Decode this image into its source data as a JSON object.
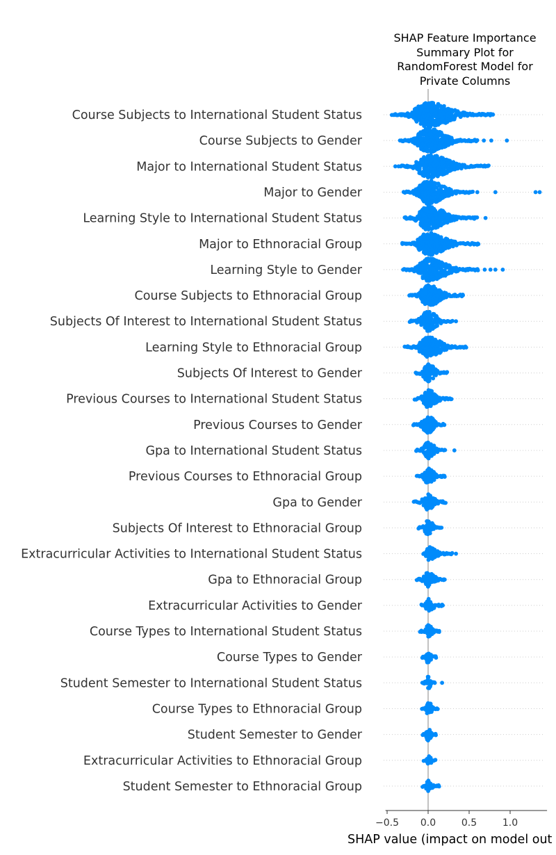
{
  "chart_data": {
    "type": "scatter",
    "subtype": "shap-beeswarm",
    "title_lines": [
      "SHAP Feature Importance",
      "Summary Plot for",
      "RandomForest Model for",
      "Private Columns"
    ],
    "xlabel": "SHAP value (impact on model out",
    "xlim": [
      -0.52,
      1.45
    ],
    "xticks": [
      -0.5,
      0.0,
      0.5,
      1.0
    ],
    "xtick_labels": [
      "−0.5",
      "0.0",
      "0.5",
      "1.0"
    ],
    "color": "#008bfb",
    "features": [
      {
        "name": "Course Subjects to International Student Status",
        "min": -0.44,
        "max": 0.79,
        "outliers": [
          0.68,
          0.72,
          0.79
        ],
        "spread": 1.0
      },
      {
        "name": "Course Subjects to Gender",
        "min": -0.34,
        "max": 0.6,
        "outliers": [
          0.68,
          0.77,
          0.96
        ],
        "spread": 1.0
      },
      {
        "name": "Major to International Student Status",
        "min": -0.33,
        "max": 0.74,
        "outliers": [
          -0.4,
          -0.36
        ],
        "spread": 0.95
      },
      {
        "name": "Major to Gender",
        "min": -0.3,
        "max": 0.55,
        "outliers": [
          0.6,
          0.82,
          1.31,
          1.36
        ],
        "spread": 0.95
      },
      {
        "name": "Learning Style to International Student Status",
        "min": -0.29,
        "max": 0.6,
        "outliers": [
          0.7
        ],
        "spread": 0.95
      },
      {
        "name": "Major to Ethnoracial Group",
        "min": -0.32,
        "max": 0.62,
        "outliers": [],
        "spread": 0.9
      },
      {
        "name": "Learning Style to Gender",
        "min": -0.3,
        "max": 0.62,
        "outliers": [
          0.69,
          0.76,
          0.82,
          0.91
        ],
        "spread": 0.9
      },
      {
        "name": "Course Subjects to Ethnoracial Group",
        "min": -0.23,
        "max": 0.43,
        "outliers": [],
        "spread": 0.85
      },
      {
        "name": "Subjects Of Interest to International Student Status",
        "min": -0.23,
        "max": 0.3,
        "outliers": [
          0.34
        ],
        "spread": 0.8
      },
      {
        "name": "Learning Style to Ethnoracial Group",
        "min": -0.28,
        "max": 0.47,
        "outliers": [],
        "spread": 0.8
      },
      {
        "name": "Subjects Of Interest to Gender",
        "min": -0.15,
        "max": 0.24,
        "outliers": [],
        "spread": 0.7
      },
      {
        "name": "Previous Courses to International Student Status",
        "min": -0.16,
        "max": 0.29,
        "outliers": [],
        "spread": 0.7
      },
      {
        "name": "Previous Courses to Gender",
        "min": -0.18,
        "max": 0.21,
        "outliers": [],
        "spread": 0.7
      },
      {
        "name": "Gpa to International Student Status",
        "min": -0.15,
        "max": 0.22,
        "outliers": [
          0.32
        ],
        "spread": 0.65
      },
      {
        "name": "Previous Courses to Ethnoracial Group",
        "min": -0.14,
        "max": 0.21,
        "outliers": [],
        "spread": 0.65
      },
      {
        "name": "Gpa to Gender",
        "min": -0.17,
        "max": 0.22,
        "outliers": [],
        "spread": 0.65
      },
      {
        "name": "Subjects Of Interest to Ethnoracial Group",
        "min": -0.12,
        "max": 0.17,
        "outliers": [],
        "spread": 0.6
      },
      {
        "name": "Extracurricular Activities to International Student Status",
        "min": -0.06,
        "max": 0.29,
        "outliers": [
          0.34
        ],
        "spread": 0.55
      },
      {
        "name": "Gpa to Ethnoracial Group",
        "min": -0.14,
        "max": 0.21,
        "outliers": [],
        "spread": 0.6
      },
      {
        "name": "Extracurricular Activities to Gender",
        "min": -0.08,
        "max": 0.19,
        "outliers": [],
        "spread": 0.55
      },
      {
        "name": "Course Types to International Student Status",
        "min": -0.1,
        "max": 0.14,
        "outliers": [],
        "spread": 0.5
      },
      {
        "name": "Course Types to Gender",
        "min": -0.07,
        "max": 0.1,
        "outliers": [],
        "spread": 0.5
      },
      {
        "name": "Student Semester to International Student Status",
        "min": -0.07,
        "max": 0.09,
        "outliers": [
          0.17
        ],
        "spread": 0.5
      },
      {
        "name": "Course Types to Ethnoracial Group",
        "min": -0.07,
        "max": 0.13,
        "outliers": [],
        "spread": 0.5
      },
      {
        "name": "Student Semester to Gender",
        "min": -0.07,
        "max": 0.1,
        "outliers": [],
        "spread": 0.5
      },
      {
        "name": "Extracurricular Activities to Ethnoracial Group",
        "min": -0.05,
        "max": 0.1,
        "outliers": [],
        "spread": 0.45
      },
      {
        "name": "Student Semester to Ethnoracial Group",
        "min": -0.07,
        "max": 0.14,
        "outliers": [],
        "spread": 0.45
      }
    ]
  }
}
